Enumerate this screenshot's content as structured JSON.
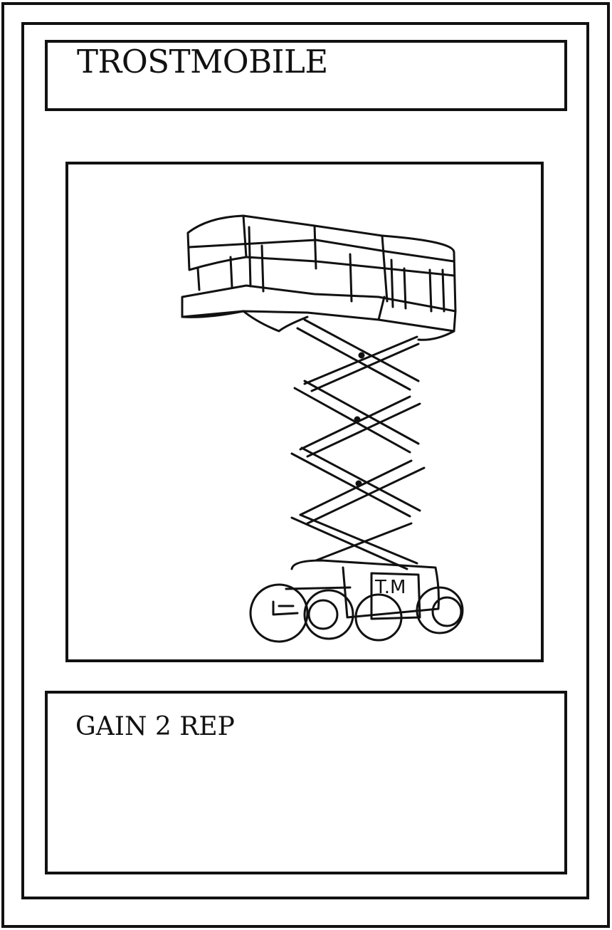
{
  "card": {
    "title": "TROSTMOBILE",
    "effect": "GAIN 2 REP",
    "illustration": {
      "icon": "scissor-lift-icon",
      "badge_text": "T.M"
    },
    "colors": {
      "ink": "#111111",
      "paper": "#ffffff"
    }
  }
}
